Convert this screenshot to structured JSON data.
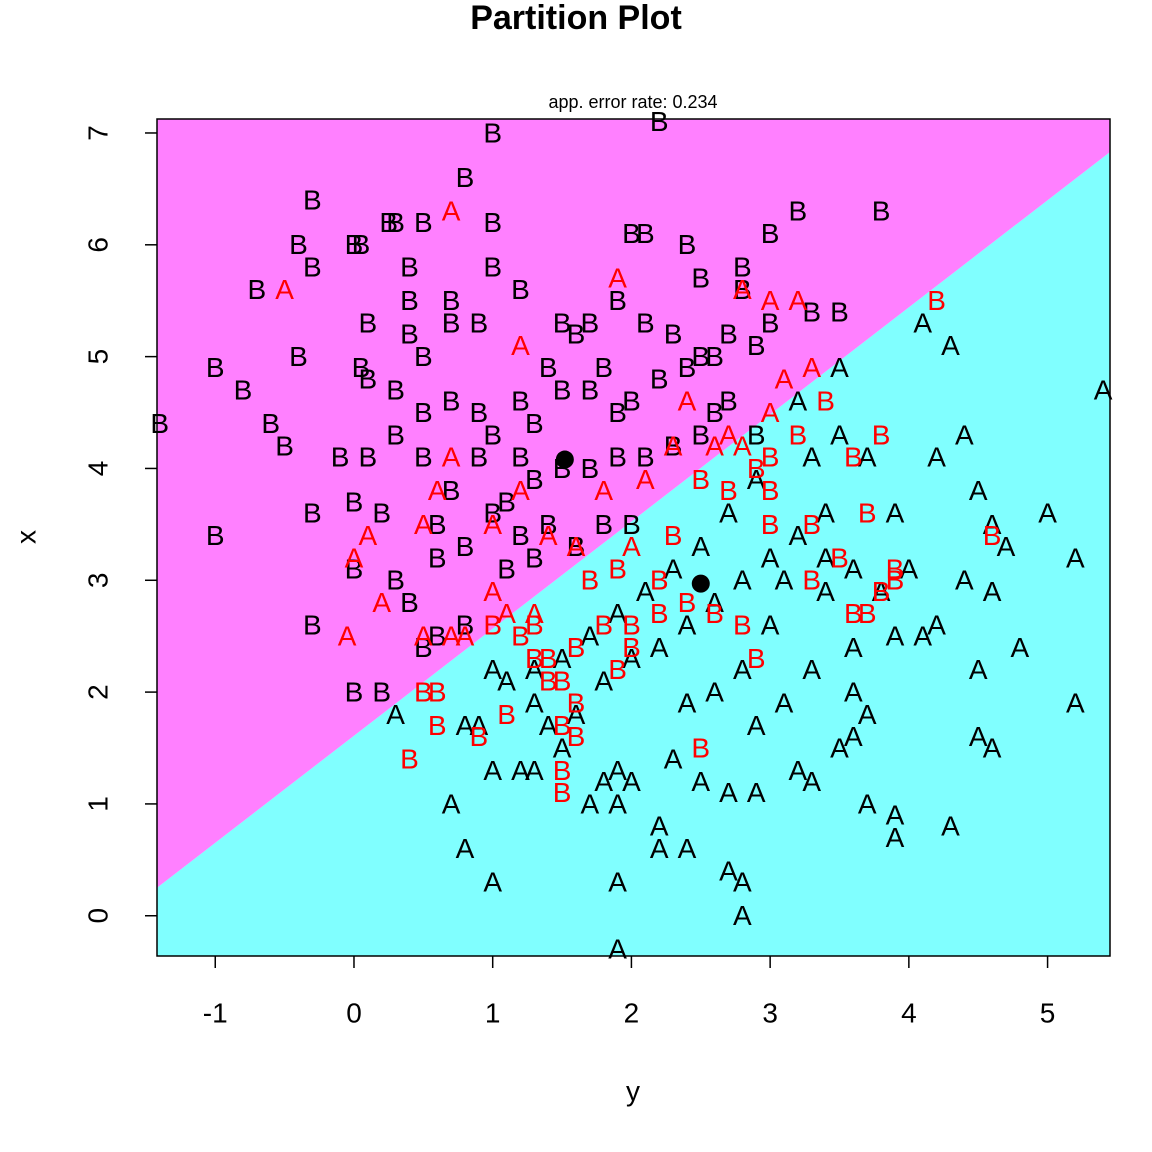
{
  "chart_data": {
    "type": "scatter",
    "title": "Partition Plot",
    "subtitle": "app. error rate: 0.234",
    "x_label": "y",
    "y_label": "x",
    "xlim": [
      -1.42,
      5.45
    ],
    "ylim": [
      -0.36,
      7.125
    ],
    "xticks": [
      -1,
      0,
      1,
      2,
      3,
      4,
      5
    ],
    "yticks": [
      0,
      1,
      2,
      3,
      4,
      5,
      6,
      7
    ],
    "region_colors": [
      "#ff80ff",
      "#80ffff"
    ],
    "boundary": {
      "x": [
        -1.42,
        5.45
      ],
      "y": [
        0.25,
        6.83
      ]
    },
    "centers": {
      "x": [
        1.52,
        2.5
      ],
      "y": [
        4.08,
        2.97
      ],
      "color": "#000000"
    },
    "series": [
      {
        "name": "B",
        "color": "#000000",
        "x": [
          -1.4,
          -1.0,
          -1.0,
          -0.8,
          -0.6,
          -0.7,
          -0.4,
          -0.5,
          -0.4,
          -0.3,
          -0.3,
          -0.3,
          -0.3,
          0,
          0.05,
          0.1,
          0.05,
          0.1,
          0,
          0,
          0.2,
          0.25,
          0.3,
          0.5,
          0.4,
          0.4,
          0.4,
          0.5,
          0.7,
          0.7,
          0.9,
          1.0,
          1.2,
          1.0,
          1.0,
          0.8,
          0.5,
          0.7,
          0.9,
          1.0,
          1.2,
          1.3,
          1.5,
          1.7,
          1.9,
          2.0,
          2.2,
          2.4,
          2.6,
          1.5,
          1.7,
          1.9,
          2.1,
          2.3,
          2.5,
          2.7,
          2.9,
          3.0,
          2.0,
          2.1,
          2.4,
          2.8,
          3.0,
          3.2,
          3.3,
          3.5,
          3.8,
          2.2,
          2.5,
          2.8,
          1.6,
          0.3,
          0.5,
          0.7,
          0.6,
          0.8,
          1.0,
          1.2,
          1.4,
          1.6,
          1.8,
          2.0,
          1.3,
          1.5,
          1.7,
          1.9,
          2.1,
          1.1,
          1.3,
          0.3,
          0.4,
          0.6,
          0.8,
          0.5,
          0.6,
          0.2,
          0.3,
          0.9,
          1.2,
          1.1,
          2.3,
          2.5,
          2.7,
          2.9,
          2.6,
          0.0,
          -0.1,
          0.1,
          1.4,
          1.8
        ],
        "y": [
          4.4,
          4.9,
          3.4,
          4.7,
          4.4,
          5.6,
          5.0,
          4.2,
          6.0,
          5.8,
          6.4,
          3.6,
          2.6,
          6.0,
          6.0,
          5.3,
          4.9,
          4.1,
          3.1,
          2.0,
          2.0,
          6.2,
          6.2,
          6.2,
          5.8,
          5.5,
          5.2,
          5.0,
          5.5,
          5.3,
          5.3,
          5.8,
          5.6,
          6.2,
          7.0,
          6.6,
          4.5,
          4.6,
          4.5,
          4.3,
          4.6,
          4.4,
          4.7,
          4.7,
          4.5,
          4.6,
          4.8,
          4.9,
          5.0,
          5.3,
          5.3,
          5.5,
          5.3,
          5.2,
          5.0,
          5.2,
          5.1,
          5.3,
          6.1,
          6.1,
          6.0,
          5.6,
          6.1,
          6.3,
          5.4,
          5.4,
          6.3,
          7.1,
          5.7,
          5.8,
          5.2,
          4.7,
          4.1,
          3.8,
          3.5,
          3.3,
          3.6,
          3.4,
          3.5,
          3.3,
          3.5,
          3.5,
          3.9,
          4.0,
          4.0,
          4.1,
          4.1,
          3.1,
          3.2,
          3.0,
          2.8,
          2.5,
          2.6,
          2.4,
          3.2,
          3.6,
          4.3,
          4.1,
          4.1,
          3.7,
          4.2,
          4.3,
          4.6,
          4.3,
          4.5,
          3.7,
          4.1,
          4.8,
          4.9,
          4.9
        ]
      },
      {
        "name": "A",
        "color": "#000000",
        "x": [
          5.4,
          4.1,
          3.5,
          4.3,
          4.4,
          4.2,
          3.7,
          3.9,
          4.5,
          4.6,
          5.0,
          5.2,
          4.4,
          4.6,
          4.8,
          4.2,
          4.5,
          5.2,
          4.5,
          4.6,
          4.3,
          3.9,
          3.9,
          3.7,
          3.3,
          3.5,
          3.7,
          3.6,
          3.9,
          3.4,
          3.1,
          3.0,
          2.8,
          2.6,
          2.4,
          2.3,
          2.5,
          2.7,
          2.9,
          3.2,
          2.2,
          2.2,
          2.4,
          2.7,
          2.8,
          2.8,
          1.9,
          1.9,
          1.0,
          0.8,
          0.7,
          1.0,
          1.2,
          1.3,
          1.7,
          1.8,
          1.9,
          2.0,
          1.9,
          1.5,
          1.4,
          1.3,
          1.1,
          1.0,
          0.9,
          0.8,
          0.3,
          1.6,
          1.8,
          2.0,
          2.2,
          2.4,
          2.6,
          2.8,
          3.0,
          3.2,
          3.4,
          2.9,
          2.7,
          2.5,
          2.3,
          2.1,
          1.9,
          1.7,
          1.5,
          1.3,
          3.3,
          3.5,
          3.2,
          3.4,
          3.6,
          3.8,
          4.0,
          4.1,
          3.6,
          3.3,
          3.1,
          2.9,
          3.6,
          4.7
        ],
        "y": [
          4.7,
          5.3,
          4.9,
          5.1,
          4.3,
          4.1,
          4.1,
          3.6,
          3.8,
          3.5,
          3.6,
          3.2,
          3.0,
          2.9,
          2.4,
          2.6,
          2.2,
          1.9,
          1.6,
          1.5,
          0.8,
          0.9,
          0.7,
          1.0,
          1.2,
          1.5,
          1.8,
          2.0,
          2.5,
          2.9,
          3.0,
          2.6,
          2.2,
          2.0,
          1.9,
          1.4,
          1.2,
          1.1,
          1.1,
          1.3,
          0.8,
          0.6,
          0.6,
          0.4,
          0.3,
          0.0,
          0.3,
          -0.3,
          0.3,
          0.6,
          1.0,
          1.3,
          1.3,
          1.3,
          1.0,
          1.2,
          1.3,
          1.2,
          1.0,
          1.5,
          1.7,
          1.9,
          2.1,
          2.2,
          1.7,
          1.7,
          1.8,
          1.8,
          2.1,
          2.3,
          2.4,
          2.6,
          2.8,
          3.0,
          3.2,
          3.4,
          3.6,
          3.9,
          3.6,
          3.3,
          3.1,
          2.9,
          2.7,
          2.5,
          2.3,
          2.2,
          4.1,
          4.3,
          4.6,
          3.2,
          3.1,
          2.9,
          3.1,
          2.5,
          2.4,
          2.2,
          1.9,
          1.7,
          1.6,
          3.3
        ]
      },
      {
        "name": "A",
        "color": "#ff0000",
        "x": [
          -0.5,
          0.7,
          1.9,
          2.8,
          3.0,
          3.2,
          3.3,
          3.1,
          3.0,
          2.4,
          2.7,
          1.2,
          0.7,
          0.6,
          0.5,
          1.0,
          1.4,
          0.0,
          0.2,
          0.1,
          0.5,
          0.7,
          0.8,
          1.0,
          1.1,
          1.3,
          -0.05,
          2.3,
          2.1,
          1.8,
          1.6,
          1.2,
          2.0,
          2.6,
          2.8
        ],
        "y": [
          5.6,
          6.3,
          5.7,
          5.6,
          5.5,
          5.5,
          4.9,
          4.8,
          4.5,
          4.6,
          4.3,
          5.1,
          4.1,
          3.8,
          3.5,
          3.5,
          3.4,
          3.2,
          2.8,
          3.4,
          2.5,
          2.5,
          2.5,
          2.9,
          2.7,
          2.7,
          2.5,
          4.2,
          3.9,
          3.8,
          3.3,
          3.8,
          3.3,
          4.2,
          4.2
        ]
      },
      {
        "name": "B",
        "color": "#ff0000",
        "x": [
          4.2,
          3.4,
          3.6,
          3.8,
          3.2,
          3.0,
          3.0,
          3.0,
          3.3,
          3.7,
          4.6,
          3.9,
          3.9,
          3.8,
          3.5,
          3.6,
          3.7,
          3.3,
          2.8,
          2.6,
          2.4,
          2.2,
          2.0,
          1.8,
          1.6,
          1.4,
          1.3,
          1.2,
          1.0,
          1.3,
          1.4,
          1.5,
          1.6,
          1.5,
          1.6,
          1.1,
          0.9,
          0.6,
          0.4,
          0.6,
          0.5,
          1.5,
          1.5,
          2.5,
          2.9,
          1.9,
          2.0,
          1.7,
          2.3,
          2.5,
          2.7,
          2.9,
          2.2,
          1.9
        ],
        "y": [
          5.5,
          4.6,
          4.1,
          4.3,
          4.3,
          4.1,
          3.8,
          3.5,
          3.5,
          3.6,
          3.4,
          3.1,
          3.0,
          2.9,
          3.2,
          2.7,
          2.7,
          3.0,
          2.6,
          2.7,
          2.8,
          2.7,
          2.6,
          2.6,
          2.4,
          2.3,
          2.6,
          2.5,
          2.6,
          2.3,
          2.1,
          2.1,
          1.9,
          1.7,
          1.6,
          1.8,
          1.6,
          1.7,
          1.4,
          2.0,
          2.0,
          1.3,
          1.1,
          1.5,
          2.3,
          2.2,
          2.4,
          3.0,
          3.4,
          3.9,
          3.8,
          4.0,
          3.0,
          3.1
        ]
      }
    ]
  }
}
